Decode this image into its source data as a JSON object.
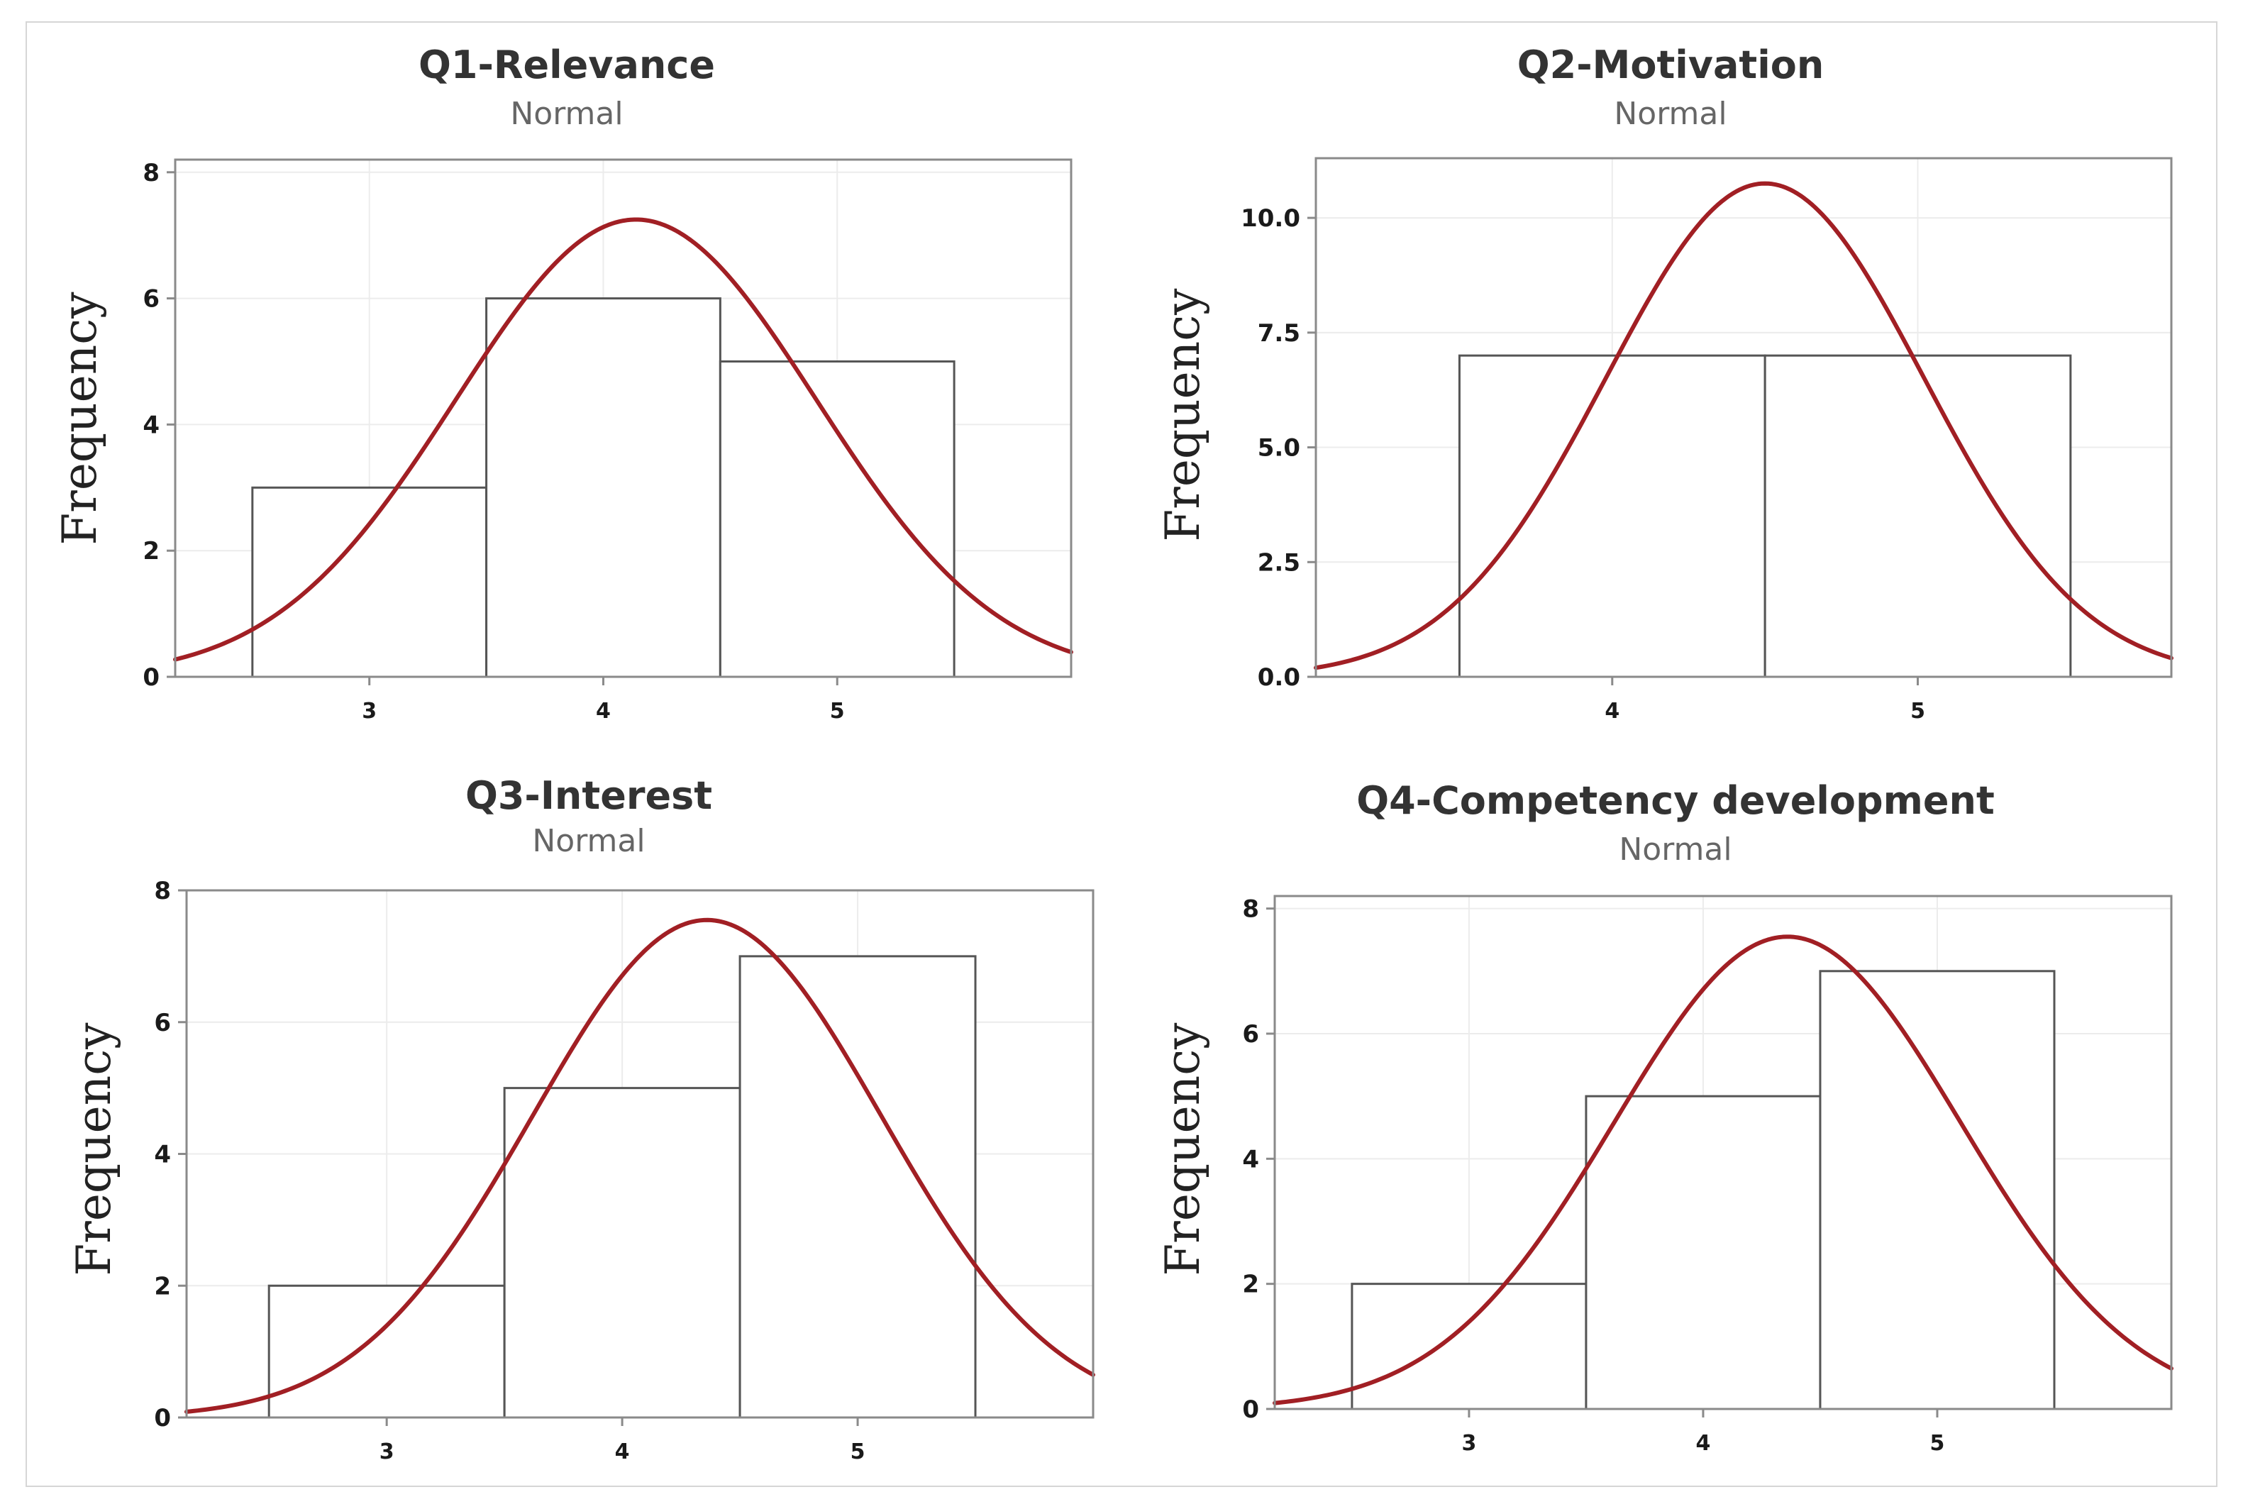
{
  "chart_data": [
    {
      "type": "bar",
      "title": "Q1-Relevance",
      "subtitle": "Normal",
      "ylabel": "Frequency",
      "xlabel": "",
      "bins": [
        {
          "x0": 2.5,
          "x1": 3.5,
          "value": 3
        },
        {
          "x0": 3.5,
          "x1": 4.5,
          "value": 6
        },
        {
          "x0": 4.5,
          "x1": 5.5,
          "value": 5
        }
      ],
      "xlim": [
        2.17,
        6.0
      ],
      "ylim": [
        0,
        8.2
      ],
      "xticks": [
        "3",
        "4",
        "5"
      ],
      "yticks": [
        "0",
        "2",
        "4",
        "6",
        "8"
      ],
      "fit": {
        "name": "Normal",
        "mean": 4.14,
        "sd": 0.77,
        "peak": 7.25
      },
      "grid": true
    },
    {
      "type": "bar",
      "title": "Q2-Motivation",
      "subtitle": "Normal",
      "ylabel": "Frequency",
      "xlabel": "",
      "bins": [
        {
          "x0": 3.5,
          "x1": 4.5,
          "value": 7
        },
        {
          "x0": 4.5,
          "x1": 5.5,
          "value": 7
        }
      ],
      "xlim": [
        3.03,
        5.83
      ],
      "ylim": [
        0,
        11.3
      ],
      "xticks": [
        "4",
        "5"
      ],
      "yticks": [
        "0.0",
        "2.5",
        "5.0",
        "7.5",
        "10.0"
      ],
      "fit": {
        "name": "Normal",
        "mean": 4.5,
        "sd": 0.52,
        "peak": 10.75
      },
      "grid": true
    },
    {
      "type": "bar",
      "title": "Q3-Interest",
      "subtitle": "Normal",
      "ylabel": "Frequency",
      "xlabel": "",
      "bins": [
        {
          "x0": 2.5,
          "x1": 3.5,
          "value": 2
        },
        {
          "x0": 3.5,
          "x1": 4.5,
          "value": 5
        },
        {
          "x0": 4.5,
          "x1": 5.5,
          "value": 7
        }
      ],
      "xlim": [
        2.15,
        6.0
      ],
      "ylim": [
        0,
        8.0
      ],
      "xticks": [
        "3",
        "4",
        "5"
      ],
      "yticks": [
        "0",
        "2",
        "4",
        "6",
        "8"
      ],
      "fit": {
        "name": "Normal",
        "mean": 4.36,
        "sd": 0.74,
        "peak": 7.55
      },
      "grid": true
    },
    {
      "type": "bar",
      "title": "Q4-Competency development",
      "subtitle": "Normal",
      "ylabel": "Frequency",
      "xlabel": "",
      "bins": [
        {
          "x0": 2.5,
          "x1": 3.5,
          "value": 2
        },
        {
          "x0": 3.5,
          "x1": 4.5,
          "value": 5
        },
        {
          "x0": 4.5,
          "x1": 5.5,
          "value": 7
        }
      ],
      "xlim": [
        2.17,
        6.0
      ],
      "ylim": [
        0,
        8.2
      ],
      "xticks": [
        "3",
        "4",
        "5"
      ],
      "yticks": [
        "0",
        "2",
        "4",
        "6",
        "8"
      ],
      "fit": {
        "name": "Normal",
        "mean": 4.36,
        "sd": 0.74,
        "peak": 7.55
      },
      "grid": true
    }
  ],
  "colors": {
    "fit_curve": "#a11f24",
    "bar_fill": "#ffffff",
    "bar_stroke": "#555555",
    "grid": "#ececec",
    "axes_frame": "#8a8a8a"
  }
}
